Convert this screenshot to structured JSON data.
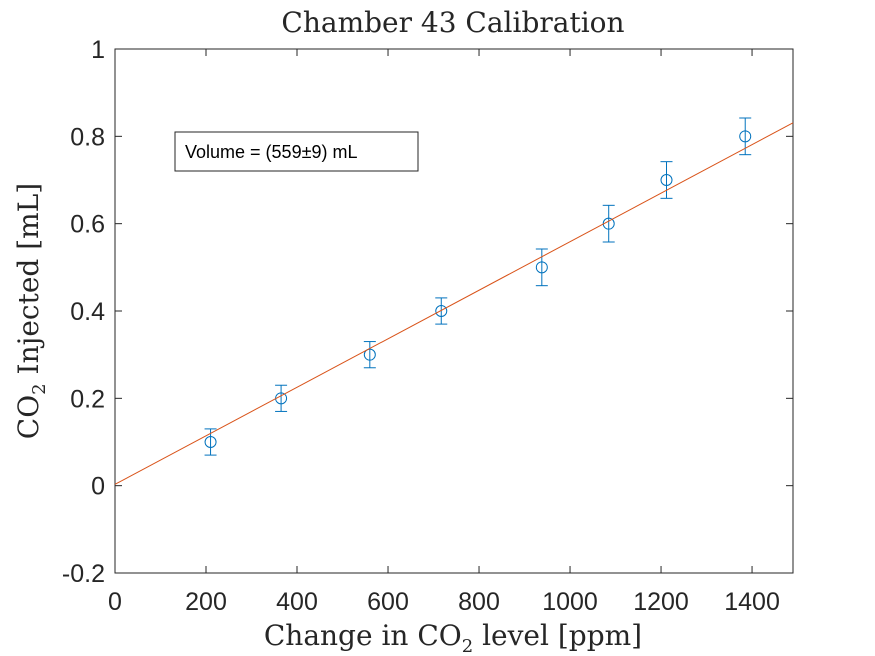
{
  "chart_data": {
    "type": "scatter",
    "title": "Chamber 43 Calibration",
    "xlabel": {
      "pre": "Change in CO",
      "sub": "2",
      "post": " level [ppm]"
    },
    "ylabel": {
      "pre": "CO",
      "sub": "2",
      "post": " Injected [mL]"
    },
    "xlim": [
      0,
      1490
    ],
    "ylim": [
      -0.2,
      1.0
    ],
    "xticks": [
      0,
      200,
      400,
      600,
      800,
      1000,
      1200,
      1400
    ],
    "yticks": [
      -0.2,
      0,
      0.2,
      0.4,
      0.6,
      0.8,
      1.0
    ],
    "xtick_labels": [
      "0",
      "200",
      "400",
      "600",
      "800",
      "1000",
      "1200",
      "1400"
    ],
    "ytick_labels": [
      "-0.2",
      "0",
      "0.2",
      "0.4",
      "0.6",
      "0.8",
      "1"
    ],
    "grid": false,
    "series": [
      {
        "kind": "errorbar-points",
        "color": "#0072BD",
        "marker": "circle",
        "x": [
          210,
          365,
          560,
          717,
          938,
          1085,
          1212,
          1385
        ],
        "y": [
          0.1,
          0.2,
          0.3,
          0.4,
          0.5,
          0.6,
          0.7,
          0.8
        ],
        "yerr": [
          0.03,
          0.03,
          0.03,
          0.03,
          0.042,
          0.042,
          0.042,
          0.042
        ]
      },
      {
        "kind": "fit-line",
        "color": "#D95319",
        "x": [
          0,
          1490
        ],
        "y": [
          0.003,
          0.831
        ]
      }
    ],
    "annotation": {
      "text": "Volume = (559±9) mL",
      "position": "upper-left"
    }
  }
}
